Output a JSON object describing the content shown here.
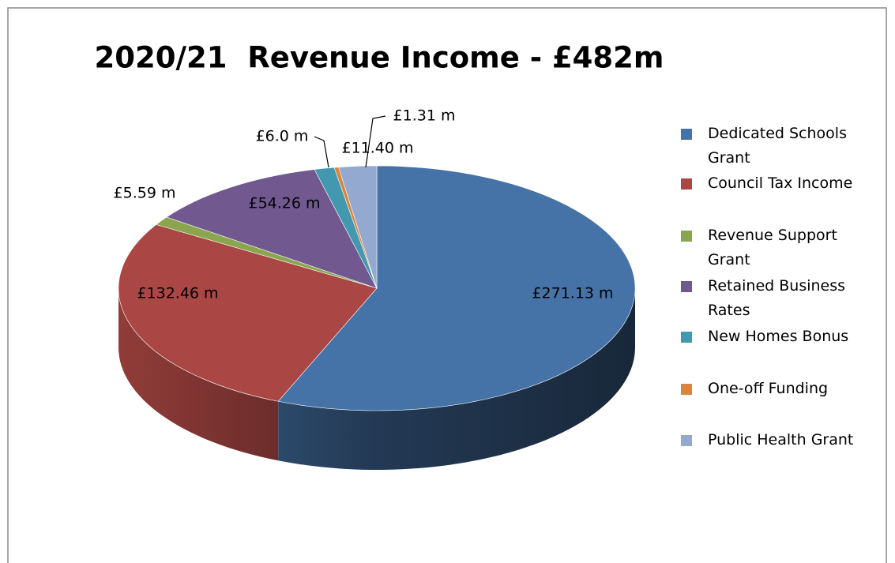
{
  "chart_data": {
    "type": "pie3d",
    "title": "2020/21  Revenue Income - £482m",
    "categories": [
      "Dedicated Schools Grant",
      "Council Tax Income",
      "Revenue Support Grant",
      "Retained Business Rates",
      "New Homes Bonus",
      "One-off Funding",
      "Public Health Grant"
    ],
    "values": [
      271.13,
      132.46,
      5.59,
      54.26,
      6.0,
      1.31,
      11.4
    ],
    "value_labels": [
      "£271.13 m",
      "£132.46 m",
      "£5.59 m",
      "£54.26 m",
      "£6.0 m",
      "£1.31 m",
      "£11.40 m"
    ],
    "colors": [
      "#4572a7",
      "#aa4643",
      "#89a54e",
      "#71588f",
      "#4198af",
      "#db843d",
      "#93a9cf"
    ],
    "legend": "right"
  }
}
